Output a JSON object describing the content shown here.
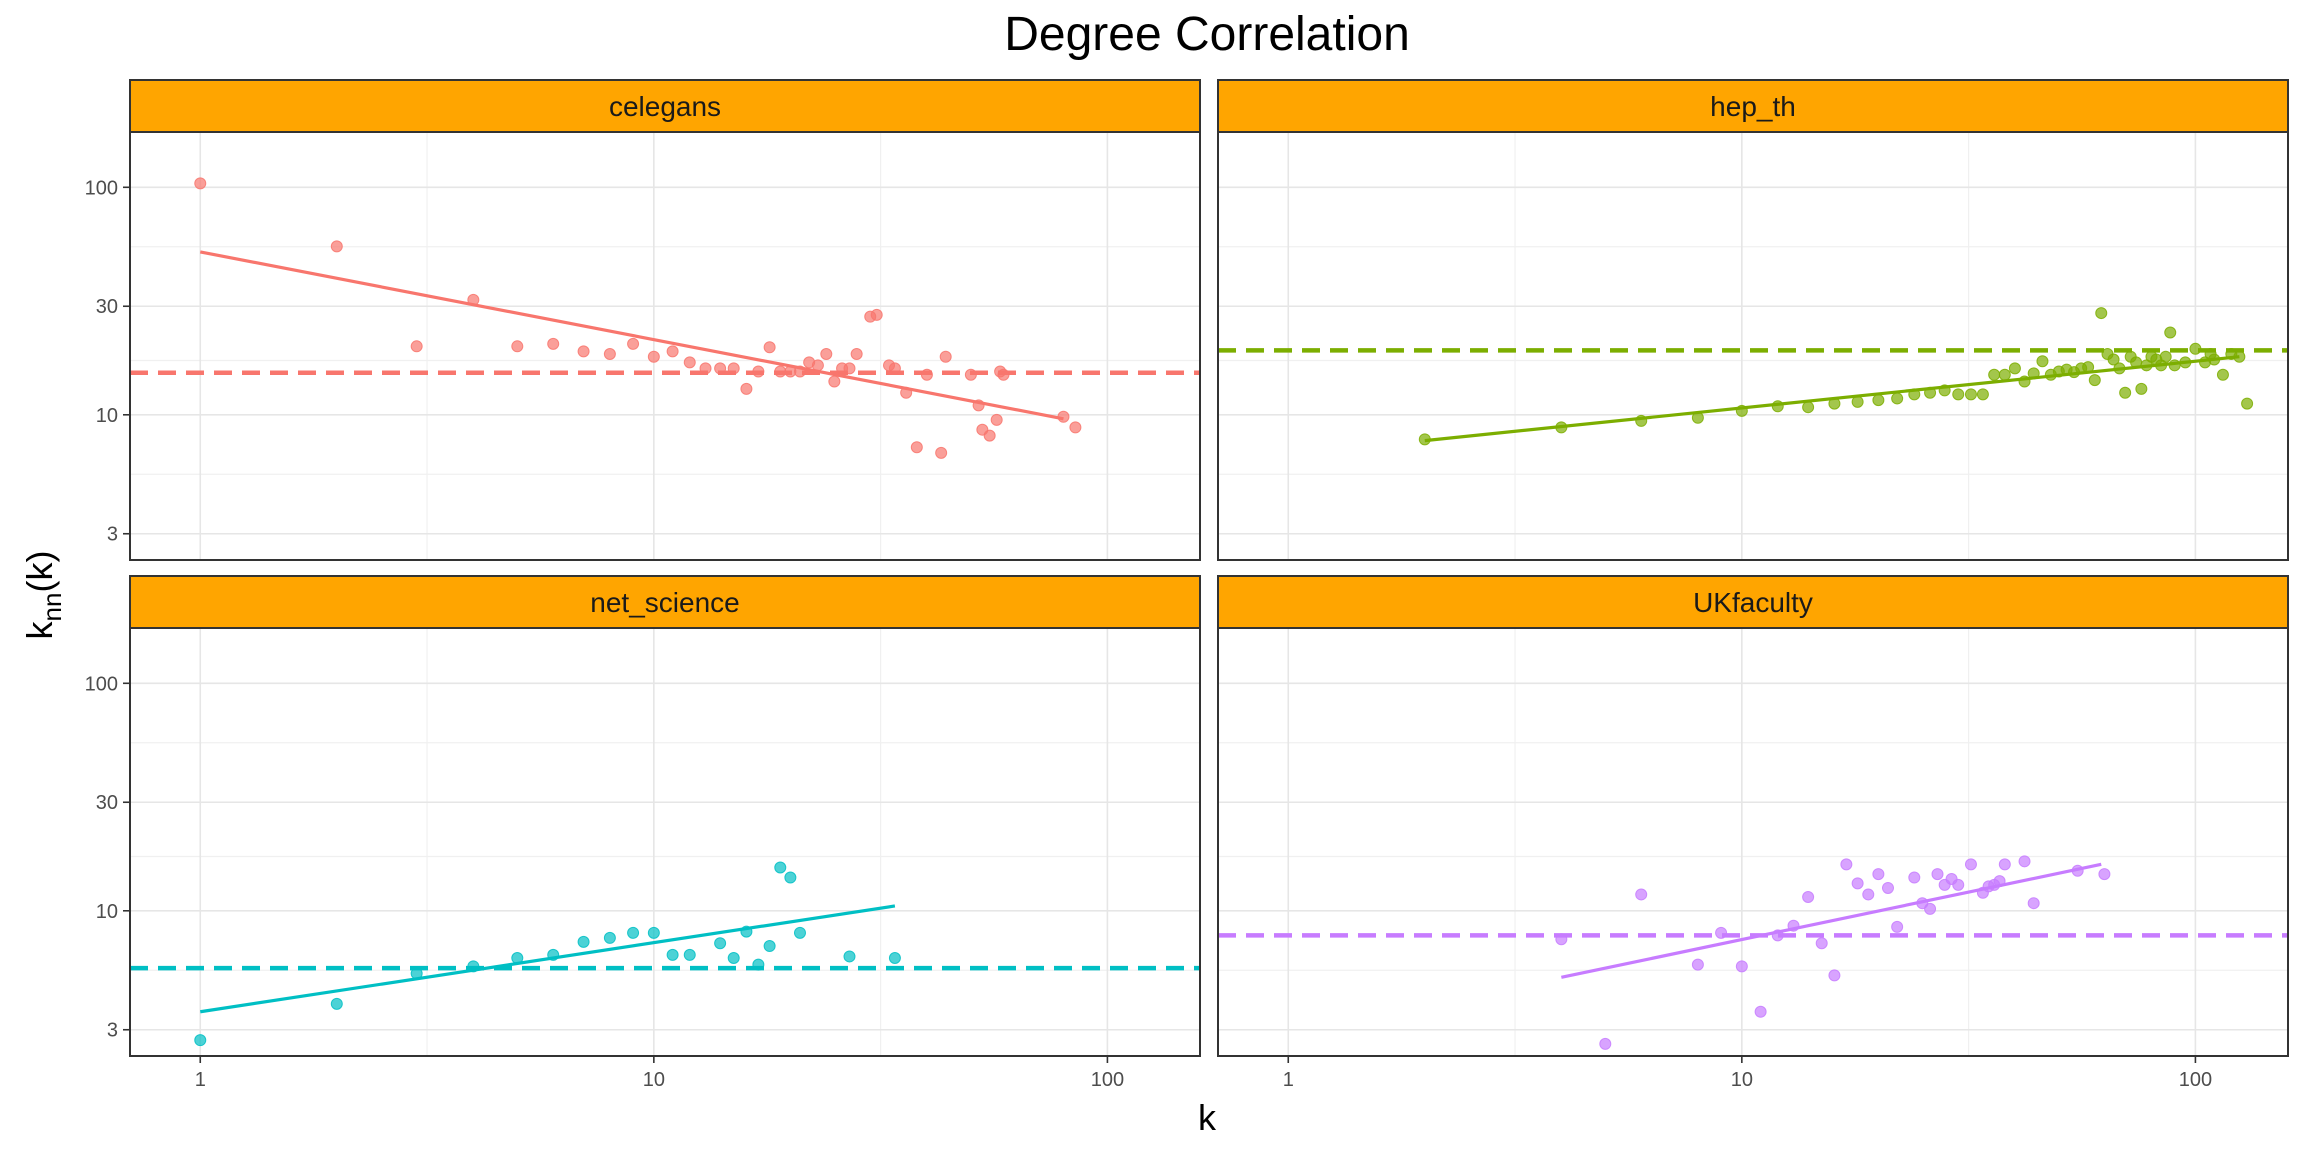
{
  "chart_data": {
    "type": "scatter",
    "title": "Degree Correlation",
    "xlabel": "k",
    "ylabel_base": "k",
    "ylabel_sub": "nn",
    "ylabel_tail": "(k)",
    "x_scale": "log10",
    "y_scale": "log10",
    "xlim": [
      0.7,
      160
    ],
    "ylim": [
      2.3,
      175
    ],
    "x_ticks": [
      1,
      10,
      100
    ],
    "x_tick_labels": [
      "1",
      "10",
      "100"
    ],
    "y_ticks": [
      3,
      10,
      30,
      100
    ],
    "y_tick_labels": [
      "3",
      "10",
      "30",
      "100"
    ],
    "grid": true,
    "strip_color": "#FFA500",
    "panels": [
      {
        "name": "celegans",
        "color": "#F8766D",
        "points": [
          [
            1,
            104
          ],
          [
            2,
            55
          ],
          [
            3,
            20
          ],
          [
            4,
            32
          ],
          [
            5,
            20
          ],
          [
            6,
            20.5
          ],
          [
            7,
            19
          ],
          [
            8,
            18.5
          ],
          [
            9,
            20.5
          ],
          [
            10,
            18
          ],
          [
            11,
            19
          ],
          [
            12,
            17
          ],
          [
            13,
            16
          ],
          [
            14,
            16
          ],
          [
            15,
            16
          ],
          [
            16,
            13
          ],
          [
            17,
            15.5
          ],
          [
            18,
            19.8
          ],
          [
            19,
            15.5
          ],
          [
            20,
            15.5
          ],
          [
            21,
            15.5
          ],
          [
            22,
            17
          ],
          [
            23,
            16.5
          ],
          [
            24,
            18.5
          ],
          [
            25,
            14
          ],
          [
            26,
            16
          ],
          [
            27,
            16
          ],
          [
            28,
            18.5
          ],
          [
            30,
            27
          ],
          [
            31,
            27.5
          ],
          [
            33,
            16.5
          ],
          [
            34,
            16
          ],
          [
            36,
            12.5
          ],
          [
            38,
            7.2
          ],
          [
            40,
            15
          ],
          [
            43,
            6.8
          ],
          [
            44,
            18
          ],
          [
            50,
            15
          ],
          [
            52,
            11
          ],
          [
            53,
            8.6
          ],
          [
            55,
            8.1
          ],
          [
            57,
            9.5
          ],
          [
            58,
            15.5
          ],
          [
            59,
            15
          ],
          [
            80,
            9.8
          ],
          [
            85,
            8.8
          ]
        ],
        "fit": [
          [
            1,
            52
          ],
          [
            80,
            9.6
          ]
        ],
        "mean": 15.3
      },
      {
        "name": "hep_th",
        "color": "#7CAE00",
        "points": [
          [
            2,
            7.8
          ],
          [
            4,
            8.8
          ],
          [
            6,
            9.4
          ],
          [
            8,
            9.7
          ],
          [
            10,
            10.4
          ],
          [
            12,
            10.9
          ],
          [
            14,
            10.8
          ],
          [
            16,
            11.2
          ],
          [
            18,
            11.4
          ],
          [
            20,
            11.6
          ],
          [
            22,
            11.8
          ],
          [
            24,
            12.3
          ],
          [
            26,
            12.5
          ],
          [
            28,
            12.8
          ],
          [
            30,
            12.3
          ],
          [
            32,
            12.3
          ],
          [
            34,
            12.3
          ],
          [
            36,
            15
          ],
          [
            38,
            15
          ],
          [
            40,
            16
          ],
          [
            42,
            14
          ],
          [
            44,
            15.2
          ],
          [
            46,
            17.2
          ],
          [
            48,
            15
          ],
          [
            50,
            15.5
          ],
          [
            52,
            15.8
          ],
          [
            54,
            15.4
          ],
          [
            56,
            16
          ],
          [
            58,
            16.2
          ],
          [
            60,
            14.2
          ],
          [
            62,
            28
          ],
          [
            64,
            18.5
          ],
          [
            66,
            17.5
          ],
          [
            68,
            16
          ],
          [
            70,
            12.5
          ],
          [
            72,
            18
          ],
          [
            74,
            17
          ],
          [
            76,
            13
          ],
          [
            78,
            16.5
          ],
          [
            80,
            18
          ],
          [
            82,
            17.5
          ],
          [
            84,
            16.5
          ],
          [
            86,
            18
          ],
          [
            88,
            23
          ],
          [
            90,
            16.5
          ],
          [
            95,
            17
          ],
          [
            100,
            19.5
          ],
          [
            105,
            17
          ],
          [
            108,
            18.5
          ],
          [
            110,
            17.5
          ],
          [
            115,
            15
          ],
          [
            120,
            18.5
          ],
          [
            125,
            18
          ],
          [
            130,
            11.2
          ]
        ],
        "fit": [
          [
            2,
            7.7
          ],
          [
            125,
            18
          ]
        ],
        "mean": 19.2
      },
      {
        "name": "net_science",
        "color": "#00BFC4",
        "points": [
          [
            1,
            2.7
          ],
          [
            2,
            3.9
          ],
          [
            3,
            5.3
          ],
          [
            4,
            5.7
          ],
          [
            5,
            6.2
          ],
          [
            6,
            6.4
          ],
          [
            7,
            7.3
          ],
          [
            8,
            7.6
          ],
          [
            9,
            8
          ],
          [
            10,
            8
          ],
          [
            11,
            6.4
          ],
          [
            12,
            6.4
          ],
          [
            14,
            7.2
          ],
          [
            15,
            6.2
          ],
          [
            16,
            8.1
          ],
          [
            17,
            5.8
          ],
          [
            18,
            7
          ],
          [
            19,
            15.5
          ],
          [
            20,
            14
          ],
          [
            21,
            8
          ],
          [
            27,
            6.3
          ],
          [
            34,
            6.2
          ]
        ],
        "fit": [
          [
            1,
            3.6
          ],
          [
            34,
            10.5
          ]
        ],
        "mean": 5.6
      },
      {
        "name": "UKfaculty",
        "color": "#C77CFF",
        "points": [
          [
            4,
            7.5
          ],
          [
            5,
            2.6
          ],
          [
            6,
            11.8
          ],
          [
            8,
            5.8
          ],
          [
            9,
            8
          ],
          [
            10,
            5.7
          ],
          [
            11,
            3.6
          ],
          [
            12,
            7.8
          ],
          [
            13,
            8.6
          ],
          [
            14,
            11.5
          ],
          [
            15,
            7.2
          ],
          [
            16,
            5.2
          ],
          [
            17,
            16
          ],
          [
            18,
            13.2
          ],
          [
            19,
            11.8
          ],
          [
            20,
            14.5
          ],
          [
            21,
            12.6
          ],
          [
            22,
            8.5
          ],
          [
            24,
            14
          ],
          [
            25,
            10.8
          ],
          [
            26,
            10.2
          ],
          [
            27,
            14.5
          ],
          [
            28,
            13
          ],
          [
            29,
            13.8
          ],
          [
            30,
            13
          ],
          [
            32,
            16
          ],
          [
            34,
            12
          ],
          [
            35,
            12.8
          ],
          [
            36,
            13
          ],
          [
            37,
            13.5
          ],
          [
            38,
            16
          ],
          [
            42,
            16.5
          ],
          [
            44,
            10.8
          ],
          [
            55,
            15
          ],
          [
            63,
            14.5
          ]
        ],
        "fit": [
          [
            4,
            5.1
          ],
          [
            62,
            16
          ]
        ],
        "mean": 7.8
      }
    ]
  }
}
